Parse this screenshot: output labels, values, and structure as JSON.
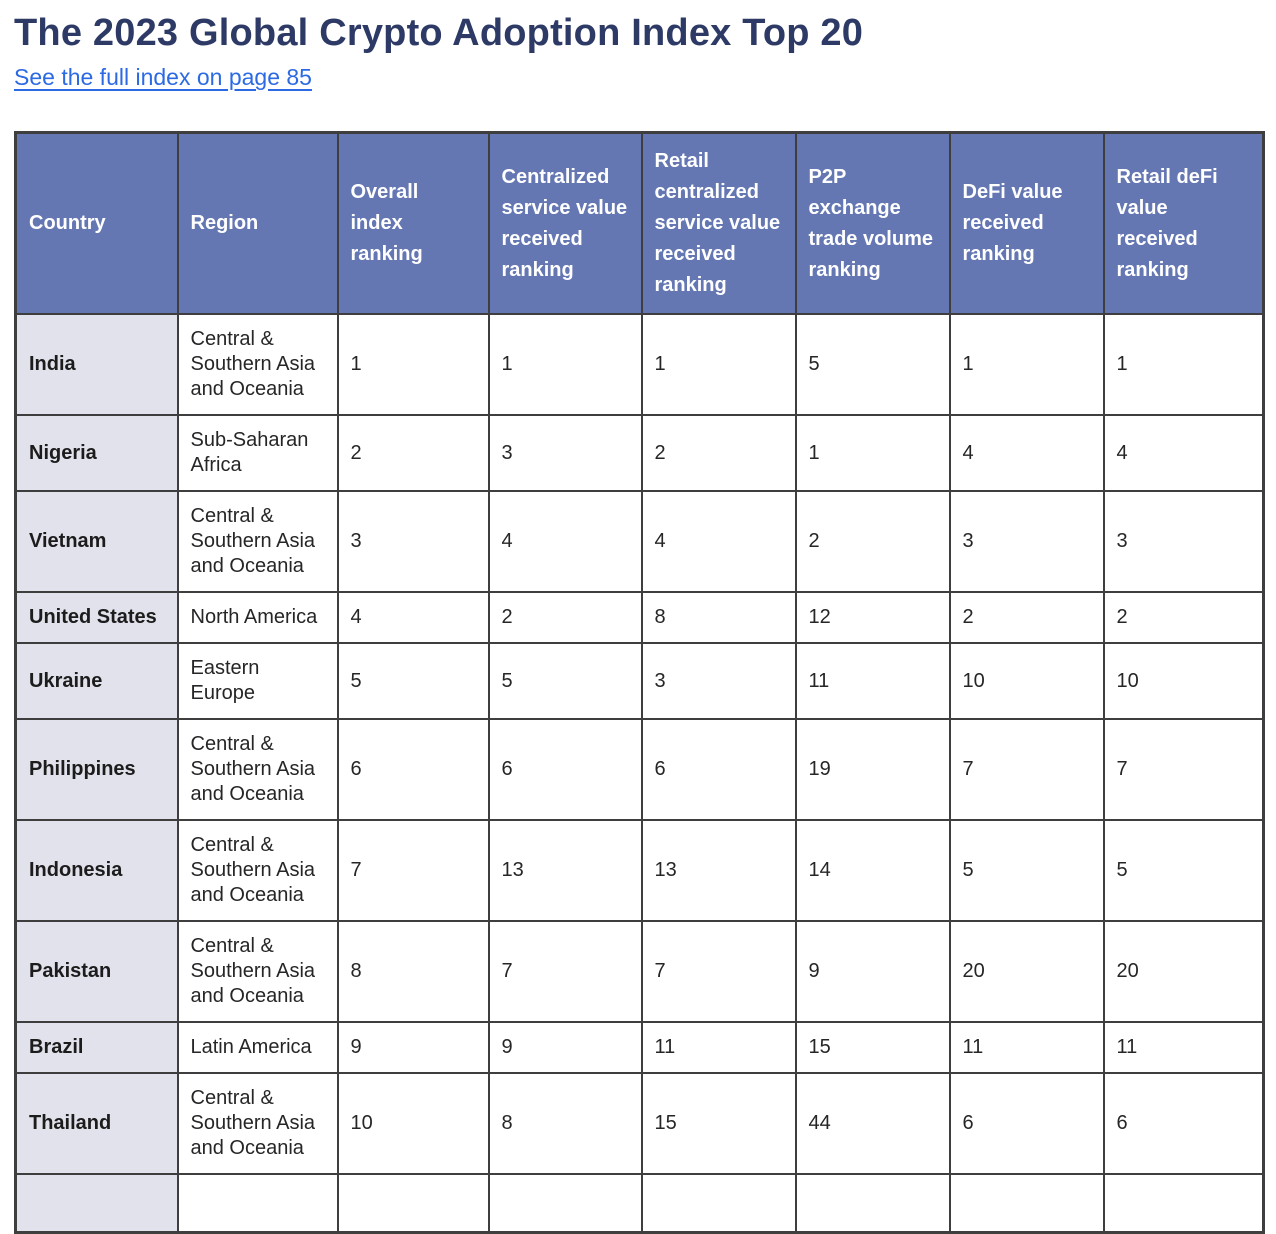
{
  "page": {
    "title": "The 2023 Global Crypto Adoption Index Top 20",
    "link_text": "See the full index on page 85"
  },
  "colors": {
    "title": "#2e3a66",
    "link": "#2c6ae4",
    "header_bg": "#6577b3",
    "country_column_bg": "#e2e2ec",
    "table_border": "#3e3e3e"
  },
  "table": {
    "columns": [
      "Country",
      "Region",
      "Overall index ranking",
      "Centralized service value received ranking",
      "Retail centralized service value received ranking",
      "P2P exchange trade volume ranking",
      "DeFi value received ranking",
      "Retail deFi value received ranking"
    ],
    "rows": [
      {
        "country": "India",
        "region": "Central & Southern Asia and Oceania",
        "values": [
          "1",
          "1",
          "1",
          "5",
          "1",
          "1"
        ]
      },
      {
        "country": "Nigeria",
        "region": "Sub-Saharan Africa",
        "values": [
          "2",
          "3",
          "2",
          "1",
          "4",
          "4"
        ]
      },
      {
        "country": "Vietnam",
        "region": "Central & Southern Asia and Oceania",
        "values": [
          "3",
          "4",
          "4",
          "2",
          "3",
          "3"
        ]
      },
      {
        "country": "United States",
        "region": "North America",
        "values": [
          "4",
          "2",
          "8",
          "12",
          "2",
          "2"
        ]
      },
      {
        "country": "Ukraine",
        "region": "Eastern Europe",
        "values": [
          "5",
          "5",
          "3",
          "11",
          "10",
          "10"
        ]
      },
      {
        "country": "Philippines",
        "region": "Central & Southern Asia and Oceania",
        "values": [
          "6",
          "6",
          "6",
          "19",
          "7",
          "7"
        ]
      },
      {
        "country": "Indonesia",
        "region": "Central & Southern Asia and Oceania",
        "values": [
          "7",
          "13",
          "13",
          "14",
          "5",
          "5"
        ]
      },
      {
        "country": "Pakistan",
        "region": "Central & Southern Asia and Oceania",
        "values": [
          "8",
          "7",
          "7",
          "9",
          "20",
          "20"
        ]
      },
      {
        "country": "Brazil",
        "region": "Latin America",
        "values": [
          "9",
          "9",
          "11",
          "15",
          "11",
          "11"
        ]
      },
      {
        "country": "Thailand",
        "region": "Central & Southern Asia and Oceania",
        "values": [
          "10",
          "8",
          "15",
          "44",
          "6",
          "6"
        ]
      }
    ]
  }
}
